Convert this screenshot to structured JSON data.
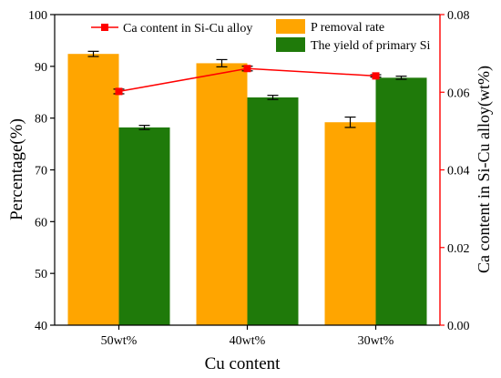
{
  "chart_data": {
    "type": "bar",
    "categories": [
      "50wt%",
      "40wt%",
      "30wt%"
    ],
    "xlabel": "Cu content",
    "ylabel": "Percentage(%)",
    "ylim": [
      40,
      100
    ],
    "yticks": [
      "40",
      "50",
      "60",
      "70",
      "80",
      "90",
      "100"
    ],
    "y2label": "Ca content in Si-Cu alloy(wt%)",
    "y2lim": [
      0,
      0.08
    ],
    "y2ticks": [
      "0.00",
      "0.02",
      "0.04",
      "0.06",
      "0.08"
    ],
    "grid": false,
    "legend_position": "top",
    "series": [
      {
        "name": "P removal rate",
        "kind": "bar",
        "axis": "left",
        "color": "#ffa500",
        "values": [
          92.4,
          90.6,
          79.2
        ],
        "errors": [
          0.5,
          0.7,
          1.0
        ]
      },
      {
        "name": "The yield of primary Si",
        "kind": "bar",
        "axis": "left",
        "color": "#1f7a0a",
        "values": [
          78.2,
          84.0,
          87.8
        ],
        "errors": [
          0.4,
          0.4,
          0.3
        ]
      },
      {
        "name": "Ca content in Si-Cu alloy",
        "kind": "line",
        "axis": "right",
        "color": "#ff0000",
        "marker": "square",
        "values": [
          0.0602,
          0.0661,
          0.0642
        ],
        "errors": [
          0.0006,
          0.0006,
          0.0003
        ]
      }
    ]
  }
}
